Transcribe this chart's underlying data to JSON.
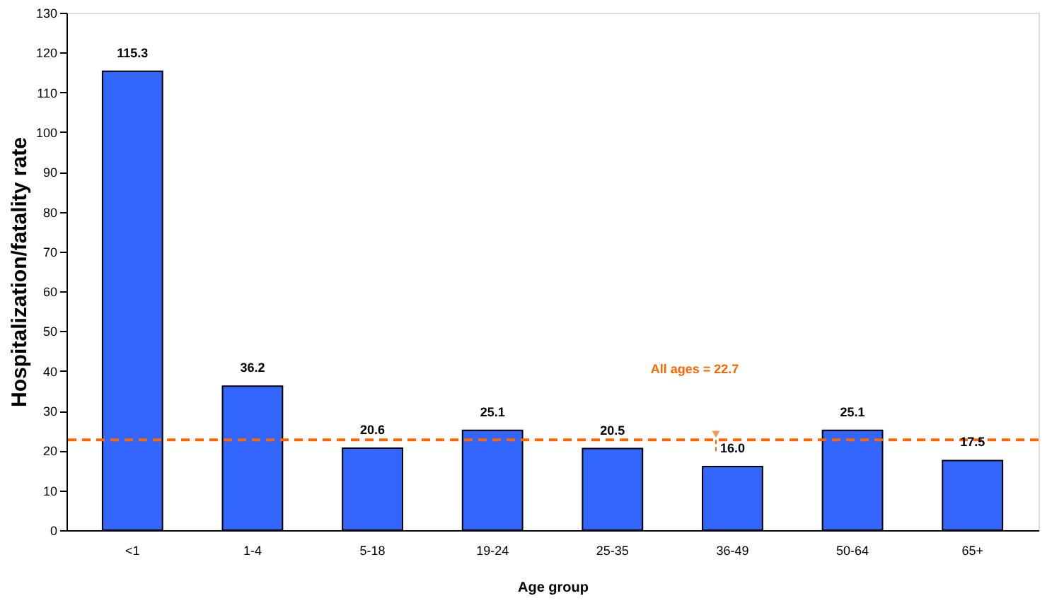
{
  "chart_data": {
    "type": "bar",
    "xlabel": "Age group",
    "ylabel": "Hospitalization/fatality rate",
    "categories": [
      "<1",
      "1-4",
      "5-18",
      "19-24",
      "25-35",
      "36-49",
      "50-64",
      "65+"
    ],
    "values": [
      115.3,
      36.2,
      20.6,
      25.1,
      20.5,
      16.0,
      25.1,
      17.5
    ],
    "value_labels": [
      "115.3",
      "36.2",
      "20.6",
      "25.1",
      "20.5",
      "16.0",
      "25.1",
      "17.5"
    ],
    "color": "#3366ff",
    "ylim": [
      0,
      130
    ],
    "yticks": [
      0,
      10,
      20,
      30,
      40,
      50,
      60,
      70,
      80,
      90,
      100,
      110,
      120,
      130
    ],
    "grid": false,
    "ref_lines": [
      {
        "axis": "y",
        "value": 22.7,
        "label": "All ages = 22.7",
        "color": "#ff6600",
        "line_style": "dashed"
      }
    ]
  }
}
